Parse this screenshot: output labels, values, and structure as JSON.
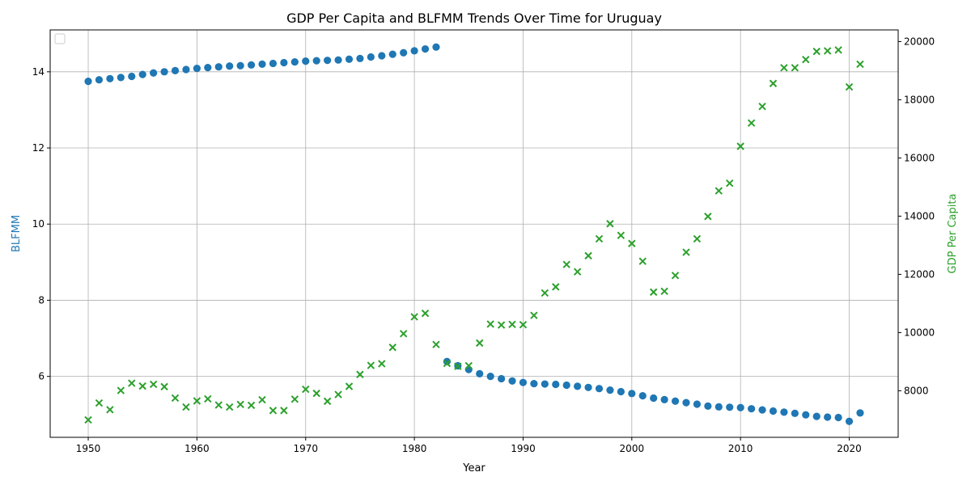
{
  "chart_data": {
    "type": "scatter",
    "title": "GDP Per Capita and BLFMM Trends Over Time for Uruguay",
    "xlabel": "Year",
    "ylabel_left": "BLFMM",
    "ylabel_right": "GDP Per Capita",
    "xlim": [
      1946.5,
      2024.5
    ],
    "ylim_left": [
      4.4,
      15.1
    ],
    "ylim_right": [
      6400,
      20400
    ],
    "x_ticks": [
      1950,
      1960,
      1970,
      1980,
      1990,
      2000,
      2010,
      2020
    ],
    "y_ticks_left": [
      6,
      8,
      10,
      12,
      14
    ],
    "y_ticks_right": [
      8000,
      10000,
      12000,
      14000,
      16000,
      18000,
      20000
    ],
    "grid": true,
    "legend_placement": "top-left",
    "colors": {
      "left": "#1f77b4",
      "right": "#2ca02c"
    },
    "series": [
      {
        "axis": "left",
        "marker": "circle",
        "x": [
          1950,
          1951,
          1952,
          1953,
          1954,
          1955,
          1956,
          1957,
          1958,
          1959,
          1960,
          1961,
          1962,
          1963,
          1964,
          1965,
          1966,
          1967,
          1968,
          1969,
          1970,
          1971,
          1972,
          1973,
          1974,
          1975,
          1976,
          1977,
          1978,
          1979,
          1980,
          1981,
          1982,
          1983,
          1984,
          1985,
          1986,
          1987,
          1988,
          1989,
          1990,
          1991,
          1992,
          1993,
          1994,
          1995,
          1996,
          1997,
          1998,
          1999,
          2000,
          2001,
          2002,
          2003,
          2004,
          2005,
          2006,
          2007,
          2008,
          2009,
          2010,
          2011,
          2012,
          2013,
          2014,
          2015,
          2016,
          2017,
          2018,
          2019,
          2020,
          2021
        ],
        "values": [
          13.75,
          13.79,
          13.82,
          13.85,
          13.88,
          13.93,
          13.97,
          14.0,
          14.03,
          14.06,
          14.09,
          14.11,
          14.13,
          14.15,
          14.16,
          14.18,
          14.2,
          14.22,
          14.24,
          14.26,
          14.28,
          14.29,
          14.3,
          14.31,
          14.33,
          14.35,
          14.39,
          14.42,
          14.46,
          14.5,
          14.55,
          14.6,
          14.65,
          6.39,
          6.28,
          6.18,
          6.07,
          6.0,
          5.94,
          5.88,
          5.84,
          5.81,
          5.8,
          5.79,
          5.77,
          5.74,
          5.71,
          5.68,
          5.64,
          5.6,
          5.55,
          5.49,
          5.43,
          5.39,
          5.35,
          5.31,
          5.27,
          5.22,
          5.2,
          5.19,
          5.18,
          5.15,
          5.12,
          5.09,
          5.06,
          5.03,
          4.99,
          4.95,
          4.93,
          4.92,
          4.82,
          5.04
        ]
      },
      {
        "axis": "right",
        "marker": "x",
        "x": [
          1950,
          1951,
          1952,
          1953,
          1954,
          1955,
          1956,
          1957,
          1958,
          1959,
          1960,
          1961,
          1962,
          1963,
          1964,
          1965,
          1966,
          1967,
          1968,
          1969,
          1970,
          1971,
          1972,
          1973,
          1974,
          1975,
          1976,
          1977,
          1978,
          1979,
          1980,
          1981,
          1982,
          1983,
          1984,
          1985,
          1986,
          1987,
          1988,
          1989,
          1990,
          1991,
          1992,
          1993,
          1994,
          1995,
          1996,
          1997,
          1998,
          1999,
          2000,
          2001,
          2002,
          2003,
          2004,
          2005,
          2006,
          2007,
          2008,
          2009,
          2010,
          2011,
          2012,
          2013,
          2014,
          2015,
          2016,
          2017,
          2018,
          2019,
          2020,
          2021
        ],
        "values": [
          7000,
          7580,
          7350,
          8010,
          8260,
          8160,
          8220,
          8140,
          7750,
          7440,
          7650,
          7720,
          7510,
          7440,
          7530,
          7500,
          7690,
          7320,
          7320,
          7710,
          8050,
          7910,
          7640,
          7870,
          8150,
          8560,
          8870,
          8930,
          9490,
          9960,
          10540,
          10660,
          9590,
          8940,
          8840,
          8860,
          9640,
          10290,
          10260,
          10280,
          10270,
          10590,
          11360,
          11570,
          12340,
          12090,
          12640,
          13220,
          13740,
          13340,
          13060,
          12450,
          11390,
          11420,
          11960,
          12760,
          13220,
          13990,
          14870,
          15130,
          16400,
          17200,
          17770,
          18560,
          19100,
          19100,
          19380,
          19660,
          19680,
          19710,
          18440,
          19220
        ]
      }
    ]
  }
}
